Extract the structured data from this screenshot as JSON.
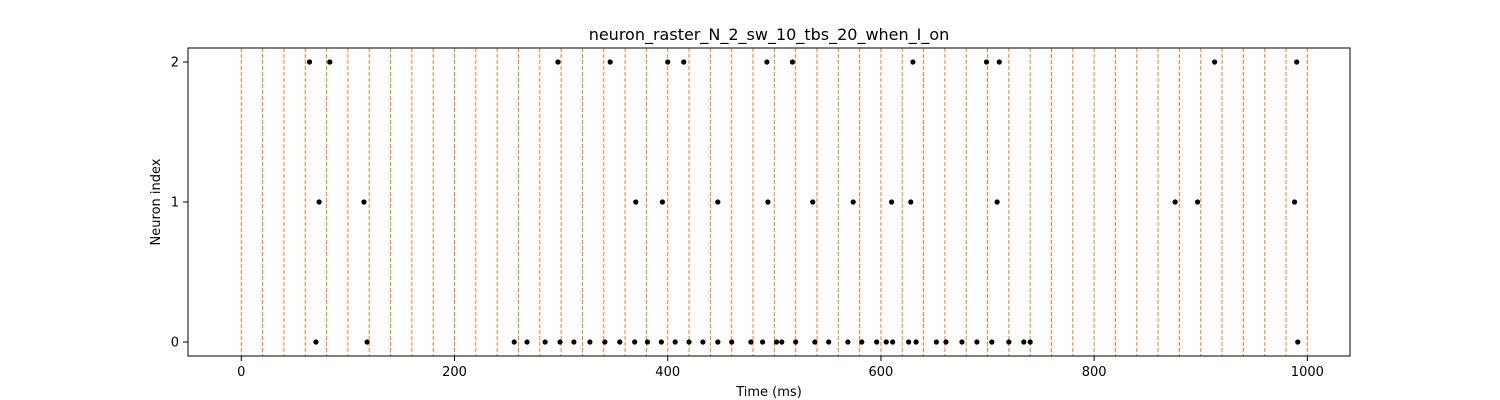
{
  "chart_data": {
    "type": "scatter",
    "title": "neuron_raster_N_2_sw_10_tbs_20_when_I_on",
    "xlabel": "Time (ms)",
    "ylabel": "Neuron index",
    "xlim": [
      -50,
      1040
    ],
    "ylim": [
      -0.1,
      2.1
    ],
    "xticks": [
      0,
      200,
      400,
      600,
      800,
      1000
    ],
    "yticks": [
      0,
      1,
      2
    ],
    "vlines": [
      0,
      20,
      40,
      60,
      80,
      100,
      120,
      140,
      160,
      180,
      200,
      220,
      240,
      260,
      280,
      300,
      320,
      340,
      360,
      380,
      400,
      420,
      440,
      460,
      480,
      500,
      520,
      540,
      560,
      580,
      600,
      620,
      640,
      660,
      680,
      700,
      720,
      740,
      760,
      780,
      800,
      820,
      840,
      860,
      880,
      900,
      920,
      940,
      960,
      980,
      1000
    ],
    "vline_color": "#ff7f0e",
    "marker_color": "#000000",
    "series": [
      {
        "y": 2,
        "x": [
          64,
          83,
          297,
          346,
          400,
          415,
          493,
          517,
          630,
          699,
          711,
          913,
          990
        ]
      },
      {
        "y": 1,
        "x": [
          73,
          115,
          370,
          395,
          447,
          494,
          536,
          574,
          610,
          628,
          709,
          876,
          897,
          988
        ]
      },
      {
        "y": 0,
        "x": [
          70,
          118,
          256,
          268,
          285,
          299,
          312,
          327,
          341,
          355,
          369,
          381,
          394,
          407,
          420,
          433,
          447,
          460,
          478,
          489,
          502,
          507,
          520,
          538,
          551,
          569,
          582,
          596,
          605,
          611,
          626,
          633,
          652,
          661,
          676,
          690,
          704,
          720,
          734,
          740,
          991
        ]
      }
    ]
  }
}
